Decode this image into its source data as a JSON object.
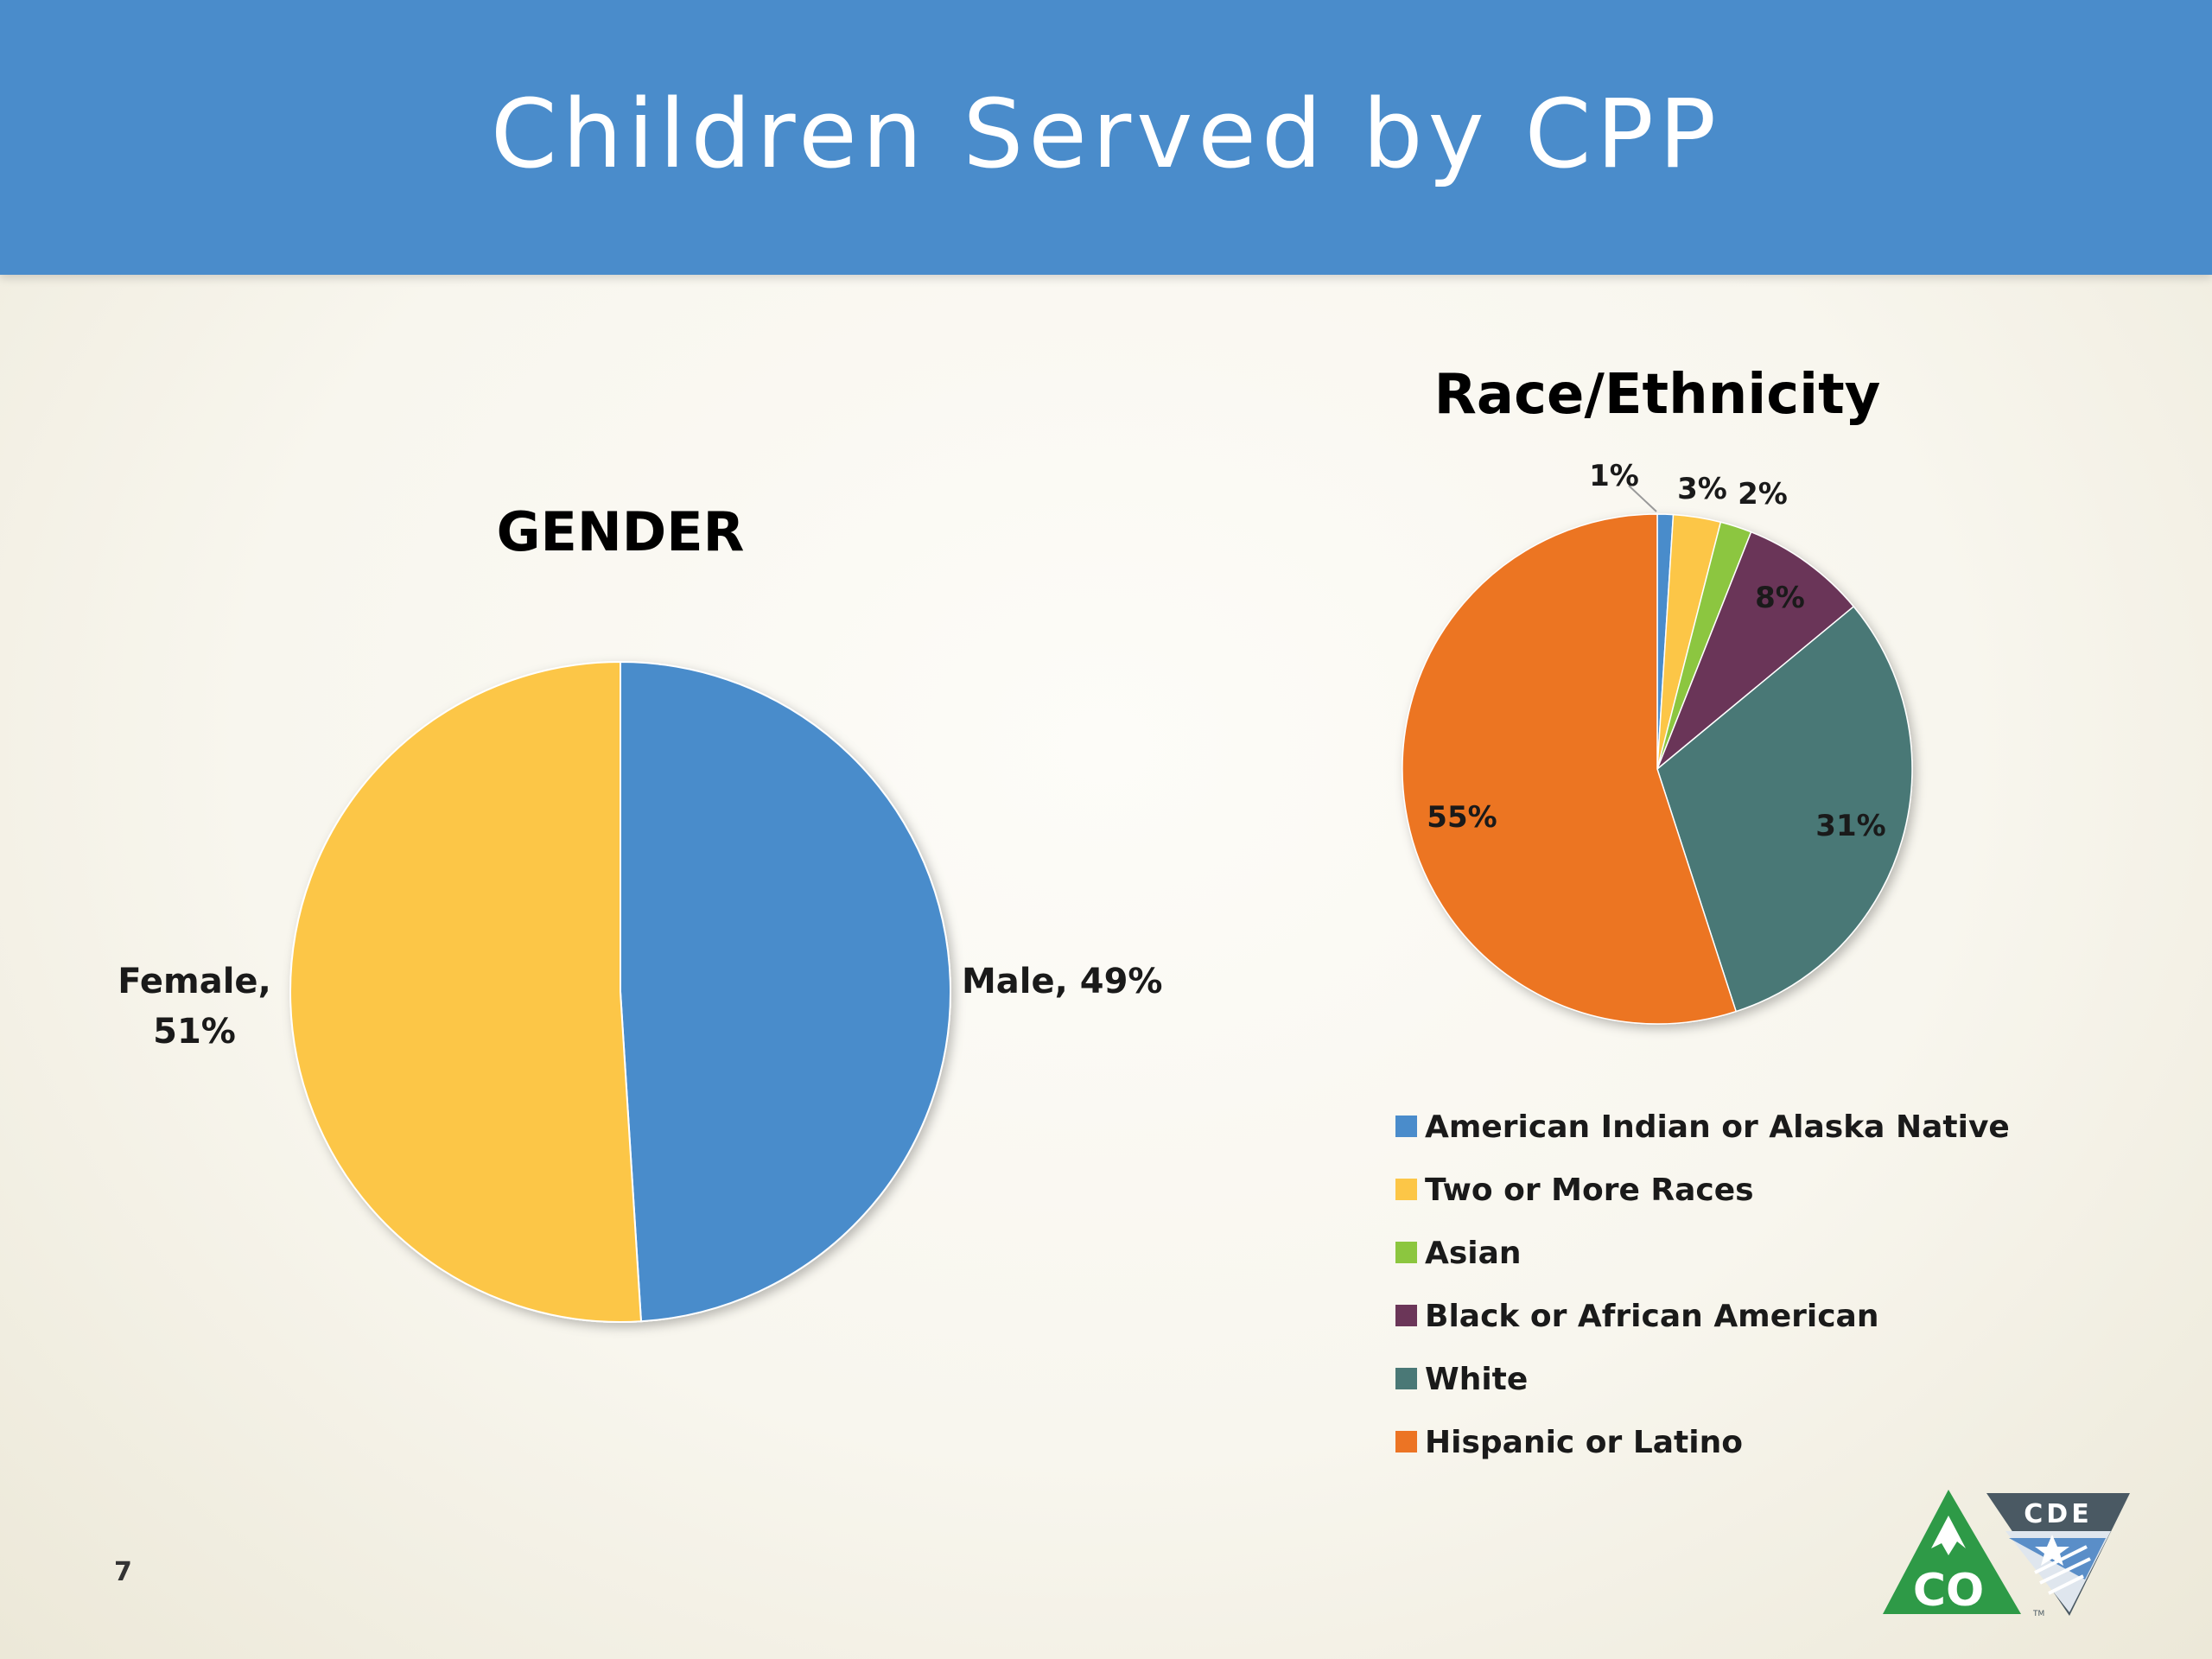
{
  "slide": {
    "title": "Children Served by CPP",
    "page_number": "7"
  },
  "logo": {
    "left_text": "CO",
    "right_text": "CDE",
    "tm": "TM"
  },
  "colors": {
    "header": "#4a8ccb",
    "male": "#4a8ccb",
    "female": "#fcc647",
    "american_indian": "#4a8ccb",
    "two_or_more": "#fcc647",
    "asian": "#8cc63f",
    "black": "#6b3658",
    "white": "#4a7876",
    "hispanic": "#ec7424",
    "logo_green": "#2e9a47",
    "logo_slate": "#4a5963"
  },
  "chart_data": [
    {
      "type": "pie",
      "title": "GENDER",
      "categories": [
        "Male",
        "Female"
      ],
      "values": [
        49,
        51
      ],
      "labels": [
        {
          "line1": "Male, 49%",
          "line2": ""
        },
        {
          "line1": "Female,",
          "line2": "51%"
        }
      ],
      "legend": "none"
    },
    {
      "type": "pie",
      "title": "Race/Ethnicity",
      "categories": [
        "American Indian or Alaska Native",
        "Two or More Races",
        "Asian",
        "Black or African American",
        "White",
        "Hispanic or Latino"
      ],
      "values": [
        1,
        3,
        2,
        8,
        31,
        55
      ],
      "labels": [
        "1%",
        "3%",
        "2%",
        "8%",
        "31%",
        "55%"
      ],
      "legend": "bottom"
    }
  ]
}
